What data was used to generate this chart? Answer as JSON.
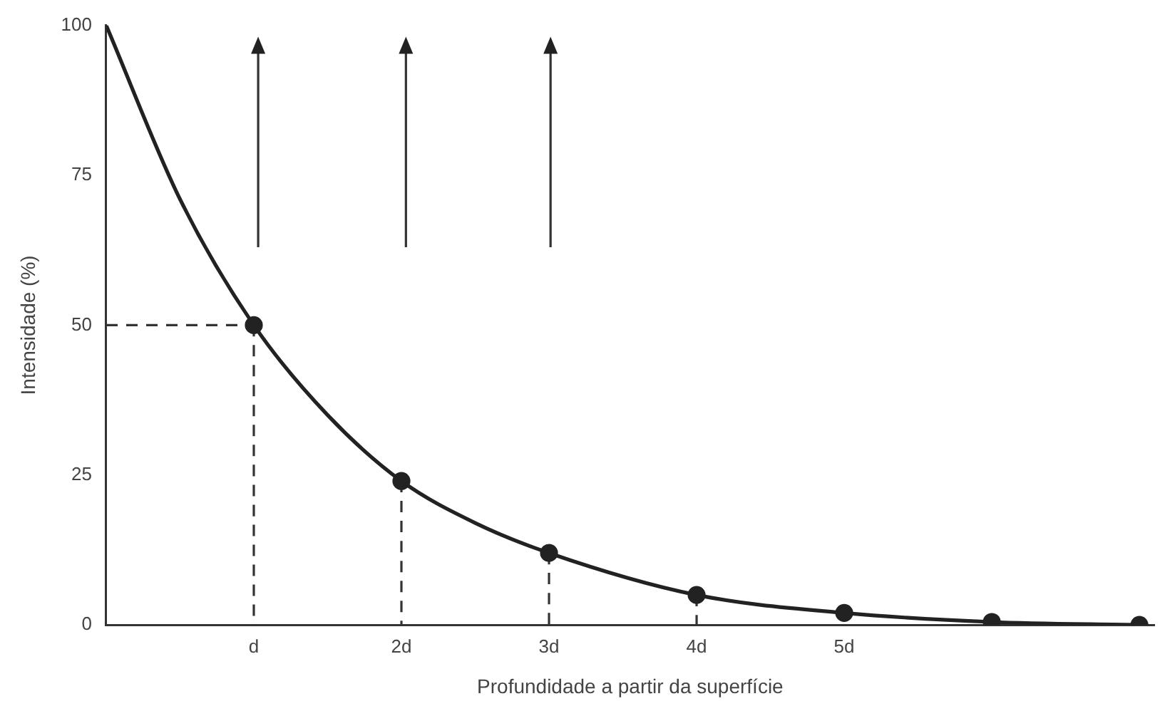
{
  "chart_data": {
    "type": "line",
    "xlabel": "Profundidade a partir da superfície",
    "ylabel": "Intensidade (%)",
    "xlim": [
      0,
      7.1
    ],
    "ylim": [
      0,
      100
    ],
    "xticks": [
      {
        "value": 1,
        "label": "d"
      },
      {
        "value": 2,
        "label": "2d"
      },
      {
        "value": 3,
        "label": "3d"
      },
      {
        "value": 4,
        "label": "4d"
      },
      {
        "value": 5,
        "label": "5d"
      }
    ],
    "yticks": [
      0,
      25,
      50,
      75,
      100
    ],
    "grid": false,
    "legend": false,
    "series": [
      {
        "type": "line",
        "color": "#222222",
        "marker": "none",
        "line_style": "solid",
        "x": [
          0,
          0.5,
          1,
          1.5,
          2,
          2.5,
          3,
          4,
          5,
          6,
          7
        ],
        "values": [
          100,
          71,
          50,
          35,
          24,
          17,
          12,
          5,
          2,
          0.5,
          0
        ]
      },
      {
        "type": "scatter",
        "color": "#222222",
        "marker": "circle",
        "x": [
          1,
          2,
          3,
          4,
          5,
          6,
          7
        ],
        "values": [
          50,
          24,
          12,
          5,
          2,
          0.5,
          0
        ]
      },
      {
        "type": "line",
        "color": "#333333",
        "marker": "none",
        "line_style": "dashed",
        "x": [
          0,
          1
        ],
        "values": [
          50,
          50
        ]
      },
      {
        "type": "line",
        "color": "#333333",
        "marker": "none",
        "line_style": "dashed",
        "x": [
          1,
          1
        ],
        "values": [
          50,
          0
        ]
      },
      {
        "type": "line",
        "color": "#333333",
        "marker": "none",
        "line_style": "dashed",
        "x": [
          2,
          2
        ],
        "values": [
          24,
          0
        ]
      },
      {
        "type": "line",
        "color": "#333333",
        "marker": "none",
        "line_style": "dashed",
        "x": [
          3,
          3
        ],
        "values": [
          12,
          0
        ]
      },
      {
        "type": "line",
        "color": "#333333",
        "marker": "none",
        "line_style": "dashed",
        "x": [
          4,
          4
        ],
        "values": [
          5,
          0
        ]
      }
    ]
  }
}
